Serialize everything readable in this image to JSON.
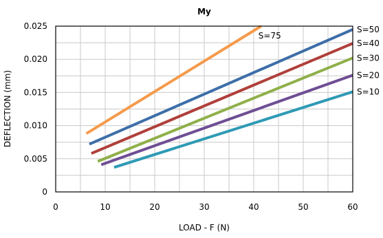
{
  "chart_data": {
    "type": "line",
    "title": "My",
    "xlabel": "LOAD - F (N)",
    "ylabel": "DEFLECTION (mm)",
    "xlim": [
      0,
      60
    ],
    "ylim": [
      0,
      0.025
    ],
    "x_ticks": [
      0,
      10,
      20,
      30,
      40,
      50,
      60
    ],
    "y_ticks": [
      0,
      0.005,
      0.01,
      0.015,
      0.02,
      0.025
    ],
    "x_tick_labels": [
      "0",
      "10",
      "20",
      "30",
      "40",
      "50",
      "60"
    ],
    "y_tick_labels": [
      "0",
      "0.005",
      "0.010",
      "0.015",
      "0.020",
      "0.025"
    ],
    "grid": true,
    "series": [
      {
        "name": "S=75",
        "color": "#f59a4a",
        "x": [
          6.2,
          41.5
        ],
        "y": [
          0.0088,
          0.025
        ]
      },
      {
        "name": "S=50",
        "color": "#3d6ea8",
        "x": [
          6.8,
          60
        ],
        "y": [
          0.0072,
          0.0245
        ]
      },
      {
        "name": "S=40",
        "color": "#b03f3a",
        "x": [
          7.2,
          60
        ],
        "y": [
          0.0058,
          0.0224
        ]
      },
      {
        "name": "S=30",
        "color": "#8fb04a",
        "x": [
          8.5,
          60
        ],
        "y": [
          0.0046,
          0.0202
        ]
      },
      {
        "name": "S=20",
        "color": "#6e4e94",
        "x": [
          9.2,
          60
        ],
        "y": [
          0.0041,
          0.0176
        ]
      },
      {
        "name": "S=10",
        "color": "#2e9ab5",
        "x": [
          11.8,
          60
        ],
        "y": [
          0.0037,
          0.0151
        ]
      }
    ]
  }
}
